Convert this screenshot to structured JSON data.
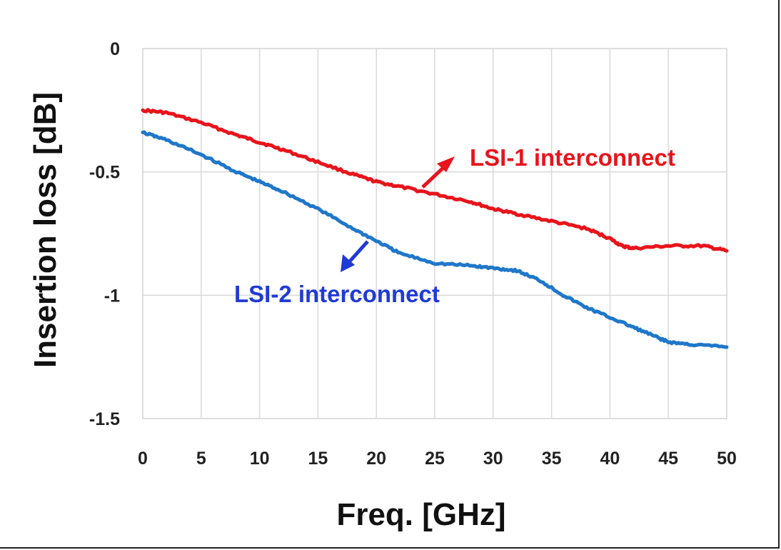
{
  "chart_data": {
    "type": "line",
    "xlabel": "Freq. [GHz]",
    "ylabel": "Insertion loss [dB]",
    "xlim": [
      0,
      50
    ],
    "ylim": [
      -1.5,
      0
    ],
    "x_ticks": [
      "0",
      "5",
      "10",
      "15",
      "20",
      "25",
      "30",
      "35",
      "40",
      "45",
      "50"
    ],
    "y_ticks": [
      "0",
      "-0.5",
      "-1",
      "-1.5"
    ],
    "grid": true,
    "series": [
      {
        "name": "LSI-1 interconnect",
        "color": "#e8141c",
        "x": [
          0,
          2,
          5,
          8,
          10,
          12,
          15,
          18,
          20,
          22,
          25,
          28,
          30,
          32,
          35,
          38,
          40,
          41,
          42,
          45,
          48,
          50
        ],
        "y": [
          -0.25,
          -0.26,
          -0.3,
          -0.35,
          -0.38,
          -0.41,
          -0.46,
          -0.51,
          -0.54,
          -0.56,
          -0.59,
          -0.62,
          -0.65,
          -0.67,
          -0.7,
          -0.73,
          -0.77,
          -0.8,
          -0.81,
          -0.8,
          -0.8,
          -0.82
        ]
      },
      {
        "name": "LSI-2 interconnect",
        "color": "#1f77c9",
        "x": [
          0,
          2,
          5,
          8,
          10,
          12,
          15,
          18,
          20,
          22,
          25,
          28,
          30,
          32,
          34,
          36,
          38,
          40,
          42,
          44,
          45,
          47,
          50
        ],
        "y": [
          -0.34,
          -0.37,
          -0.43,
          -0.5,
          -0.54,
          -0.58,
          -0.65,
          -0.73,
          -0.78,
          -0.83,
          -0.87,
          -0.88,
          -0.89,
          -0.9,
          -0.94,
          -1.0,
          -1.05,
          -1.09,
          -1.13,
          -1.17,
          -1.19,
          -1.2,
          -1.21
        ]
      }
    ],
    "annotations": [
      {
        "text": "LSI-1 interconnect",
        "color": "#e8141c"
      },
      {
        "text": "LSI-2 interconnect",
        "color": "#1f3ad6"
      }
    ]
  }
}
